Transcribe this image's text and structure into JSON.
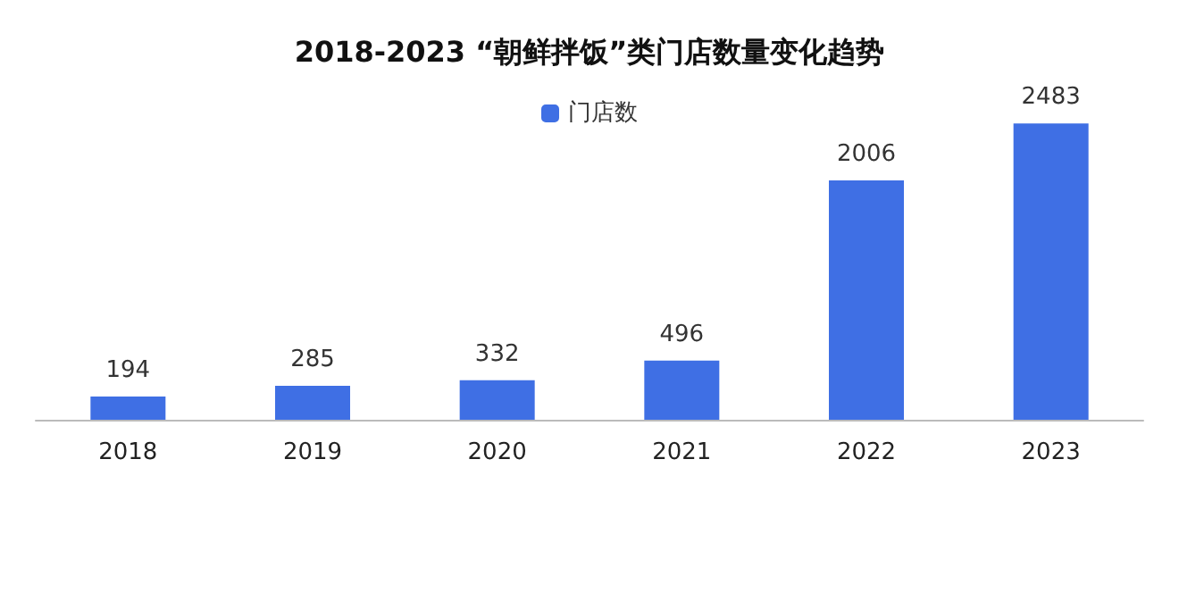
{
  "chart_data": {
    "type": "bar",
    "title": "2018-2023 “朝鲜拌饭”类门店数量变化趋势",
    "categories": [
      "2018",
      "2019",
      "2020",
      "2021",
      "2022",
      "2023"
    ],
    "series": [
      {
        "name": "门店数",
        "color": "#3f6fe4",
        "values": [
          194,
          285,
          332,
          496,
          2006,
          2483
        ]
      }
    ],
    "data_labels": true,
    "legend": "top"
  }
}
